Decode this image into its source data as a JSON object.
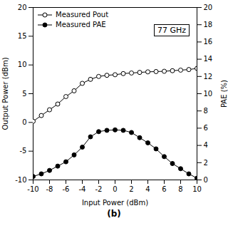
{
  "chart_data": {
    "type": "line",
    "title": "(b)",
    "xlabel": "Input Power (dBm)",
    "ylabel": "Output Power (dBm)",
    "y2label": "PAE (%)",
    "x": [
      -10,
      -9,
      -8,
      -7,
      -6,
      -5,
      -4,
      -3,
      -2,
      -1,
      0,
      1,
      2,
      3,
      4,
      5,
      6,
      7,
      8,
      9,
      10
    ],
    "xlim": [
      -10,
      10
    ],
    "xticks": [
      -10,
      -8,
      -6,
      -4,
      -2,
      0,
      2,
      4,
      6,
      8,
      10
    ],
    "ylim": [
      -10,
      20
    ],
    "yticks": [
      -10,
      -5,
      0,
      5,
      10,
      15,
      20
    ],
    "y2lim": [
      0,
      20
    ],
    "y2ticks": [
      0,
      2,
      4,
      6,
      8,
      10,
      12,
      14,
      16,
      18,
      20
    ],
    "series": [
      {
        "name": "Measured Pout",
        "color": "#000000",
        "marker": "open-circle",
        "values": [
          0.2,
          1.2,
          2.2,
          3.2,
          4.5,
          5.5,
          6.8,
          7.5,
          8.0,
          8.2,
          8.3,
          8.5,
          8.6,
          8.7,
          8.8,
          8.85,
          8.9,
          9.0,
          9.1,
          9.2,
          9.4
        ]
      },
      {
        "name": "Measured PAE",
        "color": "#000000",
        "marker": "circle",
        "axis": "y2",
        "values": [
          0.4,
          0.7,
          1.1,
          1.6,
          2.1,
          2.9,
          3.8,
          5.0,
          5.6,
          5.75,
          5.8,
          5.75,
          5.5,
          4.9,
          4.3,
          3.6,
          2.7,
          1.9,
          1.3,
          0.7,
          0.2
        ]
      }
    ],
    "legend": "upper left",
    "grid": false,
    "annotations": [
      "77 GHz"
    ]
  }
}
